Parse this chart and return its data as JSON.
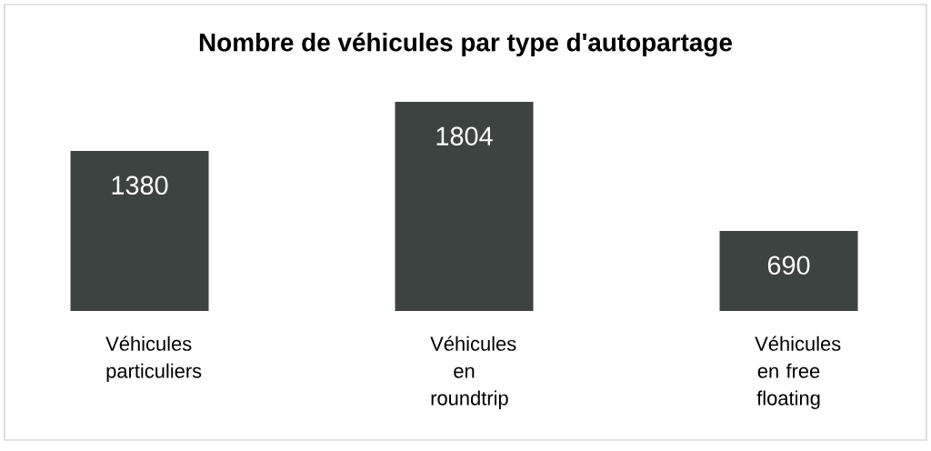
{
  "chart_data": {
    "type": "bar",
    "title": "Nombre de véhicules par type d'autopartage",
    "categories": [
      "Véhicules particuliers",
      "Véhicules en roundtrip",
      "Véhicules en free floating"
    ],
    "values": [
      1380,
      1804,
      690
    ],
    "color": "#3d4340",
    "data_labels": true
  }
}
